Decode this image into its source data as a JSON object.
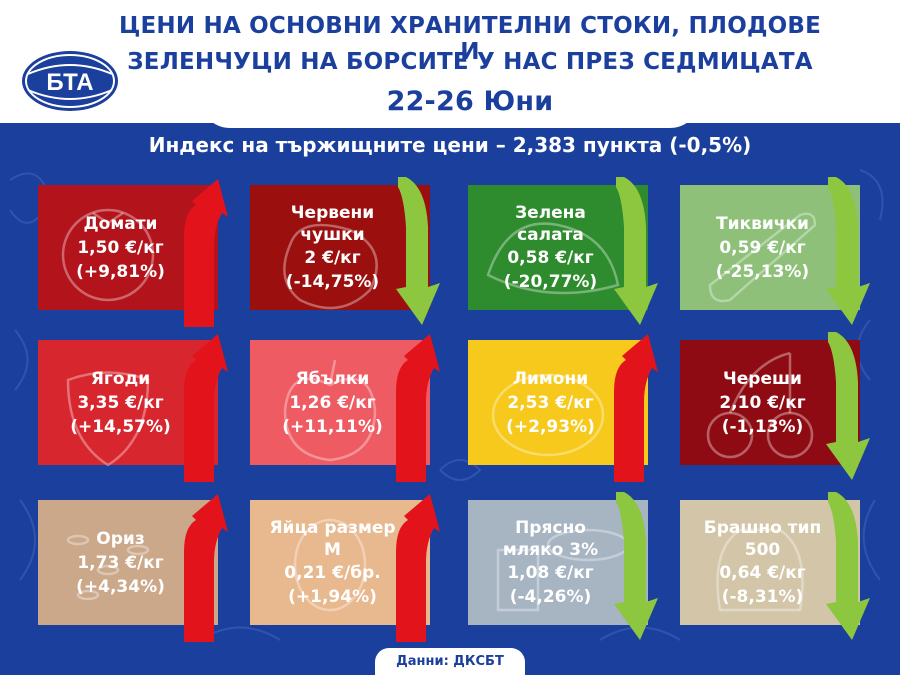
{
  "header": {
    "title_line1": "ЦЕНИ НА ОСНОВНИ ХРАНИТЕЛНИ СТОКИ, ПЛОДОВЕ И",
    "title_line2": "ЗЕЛЕНЧУЦИ НА БОРСИТЕ У НАС ПРЕЗ СЕДМИЦАТА",
    "date": "22-26 Юни",
    "logo_text": "БТА"
  },
  "index_line": "Индекс на тържищните цени – 2,383 пункта (-0,5%)",
  "source": "Данни: ДКСБТ",
  "colors": {
    "background": "#1b3f9c",
    "up_arrow": "#e3131b",
    "down_arrow": "#8dc63f"
  },
  "tiles": [
    {
      "name": "Домати",
      "price": "1,50 €/кг",
      "change": "(+9,81%)",
      "direction": "up",
      "color": "#b3141c",
      "icon": "tomato-icon"
    },
    {
      "name": "Червени чушки",
      "price": "2 €/кг",
      "change": "(-14,75%)",
      "direction": "down",
      "color": "#9c0f0f",
      "icon": "pepper-icon"
    },
    {
      "name": "Зелена салата",
      "price": "0,58 €/кг",
      "change": "(-20,77%)",
      "direction": "down",
      "color": "#2e8b2e",
      "icon": "lettuce-icon"
    },
    {
      "name": "Тиквички",
      "price": "0,59 €/кг",
      "change": "(-25,13%)",
      "direction": "down",
      "color": "#8ec07a",
      "icon": "zucchini-icon"
    },
    {
      "name": "Ягоди",
      "price": "3,35 €/кг",
      "change": "(+14,57%)",
      "direction": "up",
      "color": "#d7262e",
      "icon": "strawberry-icon"
    },
    {
      "name": "Ябълки",
      "price": "1,26 €/кг",
      "change": "(+11,11%)",
      "direction": "up",
      "color": "#ef5b63",
      "icon": "apple-icon"
    },
    {
      "name": "Лимони",
      "price": "2,53 €/кг",
      "change": "(+2,93%)",
      "direction": "up",
      "color": "#f7c91c",
      "icon": "lemon-icon"
    },
    {
      "name": "Череши",
      "price": "2,10 €/кг",
      "change": "(-1,13%)",
      "direction": "down",
      "color": "#8f0b13",
      "icon": "cherries-icon"
    },
    {
      "name": "Ориз",
      "price": "1,73 €/кг",
      "change": "(+4,34%)",
      "direction": "up",
      "color": "#cba88a",
      "icon": "rice-icon"
    },
    {
      "name": "Яйца размер М",
      "price": "0,21 €/бр.",
      "change": "(+1,94%)",
      "direction": "up",
      "color": "#e8b88e",
      "icon": "egg-icon"
    },
    {
      "name": "Прясно мляко 3%",
      "price": "1,08 €/кг",
      "change": "(-4,26%)",
      "direction": "down",
      "color": "#a7b4c2",
      "icon": "milk-icon"
    },
    {
      "name": "Брашно тип 500",
      "price": "0,64 €/кг",
      "change": "(-8,31%)",
      "direction": "down",
      "color": "#d3c6a8",
      "icon": "flour-icon"
    }
  ]
}
